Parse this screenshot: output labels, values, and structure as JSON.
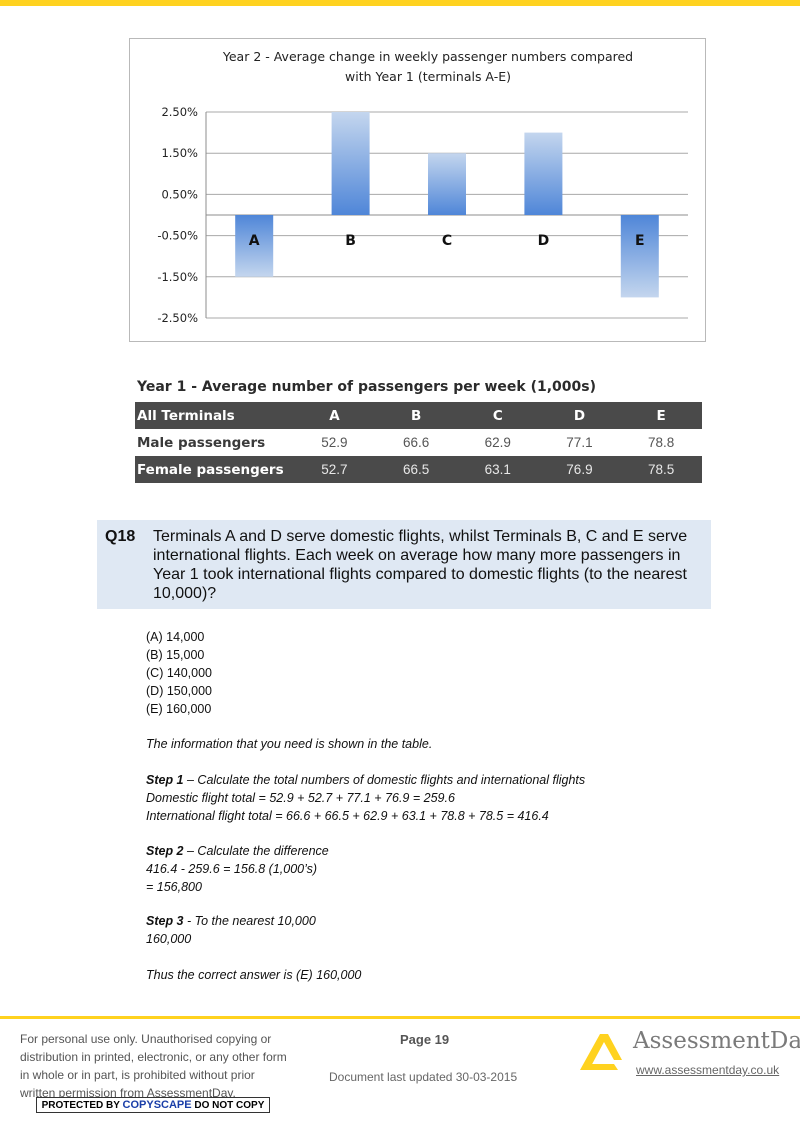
{
  "chart_data": {
    "type": "bar",
    "title_line1": "Year 2 - Average change in weekly passenger numbers compared",
    "title_line2": "with Year 1 (terminals A-E)",
    "categories": [
      "A",
      "B",
      "C",
      "D",
      "E"
    ],
    "values": [
      -1.5,
      2.5,
      1.5,
      2.0,
      -2.0
    ],
    "ytick_labels": [
      "2.50%",
      "1.50%",
      "0.50%",
      "-0.50%",
      "-1.50%",
      "-2.50%"
    ],
    "yticks": [
      2.5,
      1.5,
      0.5,
      -0.5,
      -1.5,
      -2.5
    ],
    "ylim": [
      -2.5,
      2.5
    ],
    "grid": true,
    "bar_color_top": "#c4d6ee",
    "bar_color_bottom": "#4f86d8"
  },
  "table": {
    "title": "Year 1 - Average number of passengers per week (1,000s)",
    "header": [
      "All Terminals",
      "A",
      "B",
      "C",
      "D",
      "E"
    ],
    "rows": [
      [
        "Male passengers",
        "52.9",
        "66.6",
        "62.9",
        "77.1",
        "78.8"
      ],
      [
        "Female passengers",
        "52.7",
        "66.5",
        "63.1",
        "76.9",
        "78.5"
      ]
    ]
  },
  "question": {
    "number": "Q18",
    "text": "Terminals A and D serve domestic flights, whilst Terminals B, C and E serve international flights. Each week on average how many more passengers in Year 1 took international flights compared to domestic flights (to the nearest 10,000)?",
    "options": [
      "(A) 14,000",
      "(B) 15,000",
      "(C) 140,000",
      "(D) 150,000",
      "(E) 160,000"
    ]
  },
  "explanation": {
    "intro": "The information that you need is shown in the table.",
    "step1_label": "Step 1",
    "step1_text": " – Calculate the total numbers of domestic flights and international flights",
    "step1_line2": "Domestic flight total = 52.9 + 52.7 + 77.1 + 76.9 = 259.6",
    "step1_line3": "International flight total = 66.6 + 66.5 + 62.9 + 63.1 + 78.8 + 78.5 = 416.4",
    "step2_label": "Step 2",
    "step2_text": " – Calculate the difference",
    "step2_line2": "416.4 - 259.6 = 156.8 (1,000’s)",
    "step2_line3": "= 156,800",
    "step3_label": "Step 3",
    "step3_text": " - To the nearest 10,000",
    "step3_line2": "160,000",
    "conclusion": "Thus the correct answer is (E) 160,000"
  },
  "footer": {
    "notice": "For personal use only. Unauthorised copying or distribution in printed, electronic, or any other form in whole or in part, is prohibited without prior written permission from AssessmentDay.",
    "copyscape_left": "PROTECTED BY ",
    "copyscape_brand": "COPYSCAPE",
    "copyscape_right": " DO NOT COPY",
    "page": "Page 19",
    "updated": "Document last updated 30-03-2015",
    "logo": "AssessmentDay",
    "url": "www.assessmentday.co.uk"
  },
  "colors": {
    "accent": "#FFD21F",
    "question_bg": "#dfe8f3",
    "table_dark": "#4a4a4a"
  }
}
